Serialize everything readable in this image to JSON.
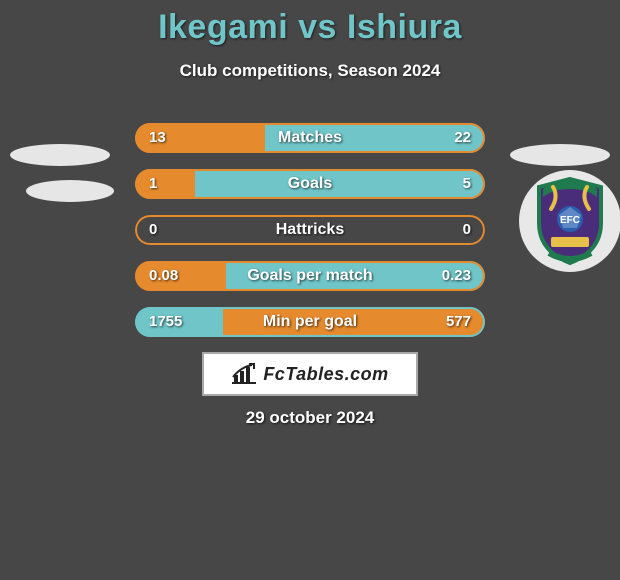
{
  "title_left": "Ikegami",
  "title_vs": " vs ",
  "title_right": "Ishiura",
  "subtitle": "Club competitions, Season 2024",
  "date": "29 october 2024",
  "branding": "FcTables.com",
  "colors": {
    "accent": "#6fc5c8",
    "orange": "#e68a2e",
    "white": "#ffffff",
    "border_light": "#a8a8a8",
    "crest_purple": "#4a2d7a",
    "crest_green": "#1f7a4d",
    "crest_yellow": "#e6c048"
  },
  "bars": [
    {
      "label": "Matches",
      "left_value": "13",
      "right_value": "22",
      "left_num": 13,
      "right_num": 22,
      "left_pct": 37,
      "right_pct": 63,
      "border_color": "#e68a2e",
      "left_fill": "#e68a2e",
      "right_fill": "#6fc5c8"
    },
    {
      "label": "Goals",
      "left_value": "1",
      "right_value": "5",
      "left_num": 1,
      "right_num": 5,
      "left_pct": 17,
      "right_pct": 83,
      "border_color": "#e68a2e",
      "left_fill": "#e68a2e",
      "right_fill": "#6fc5c8"
    },
    {
      "label": "Hattricks",
      "left_value": "0",
      "right_value": "0",
      "left_num": 0,
      "right_num": 0,
      "left_pct": 0,
      "right_pct": 0,
      "border_color": "#e68a2e",
      "left_fill": "#e68a2e",
      "right_fill": "#6fc5c8"
    },
    {
      "label": "Goals per match",
      "left_value": "0.08",
      "right_value": "0.23",
      "left_num": 0.08,
      "right_num": 0.23,
      "left_pct": 26,
      "right_pct": 74,
      "border_color": "#e68a2e",
      "left_fill": "#e68a2e",
      "right_fill": "#6fc5c8"
    },
    {
      "label": "Min per goal",
      "left_value": "1755",
      "right_value": "577",
      "left_num": 1755,
      "right_num": 577,
      "left_pct": 25,
      "right_pct": 75,
      "border_color": "#6fc5c8",
      "left_fill": "#6fc5c8",
      "right_fill": "#e68a2e"
    }
  ]
}
